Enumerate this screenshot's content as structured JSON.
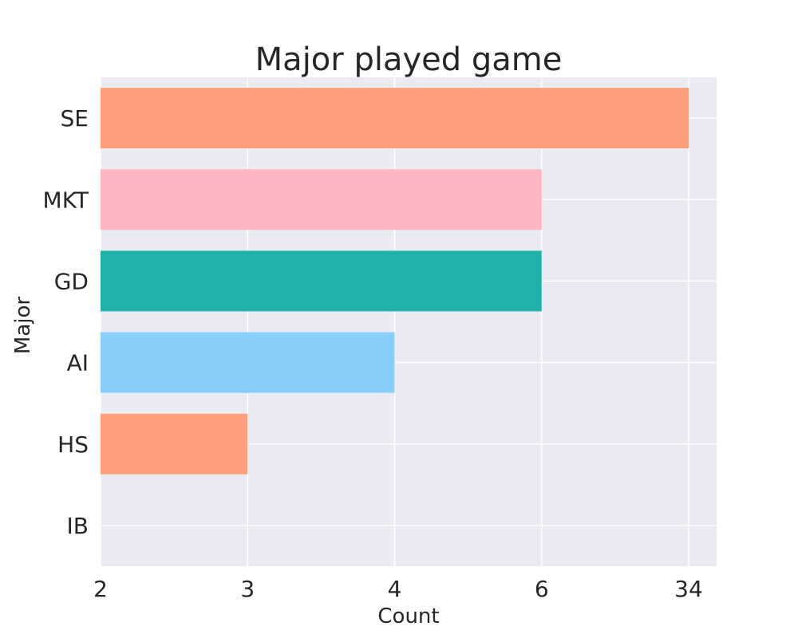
{
  "chart_data": {
    "type": "bar",
    "orientation": "horizontal",
    "title": "Major played game",
    "xlabel": "Count",
    "ylabel": "Major",
    "categories": [
      "SE",
      "MKT",
      "GD",
      "AI",
      "HS",
      "IB"
    ],
    "values": [
      34,
      6,
      6,
      4,
      3,
      2
    ],
    "x_ticks": [
      2,
      3,
      4,
      6,
      34
    ],
    "x_axis_scale": "categorical (ticks evenly spaced)",
    "bar_colors": [
      "#FFA07A",
      "#FFB6C1",
      "#20B2AA",
      "#87CEFA",
      "#FFA07A",
      "#FFA07A"
    ],
    "background": "#EAEAF2",
    "gridline_color": "#FFFFFF",
    "grid": true,
    "legend": "none"
  }
}
